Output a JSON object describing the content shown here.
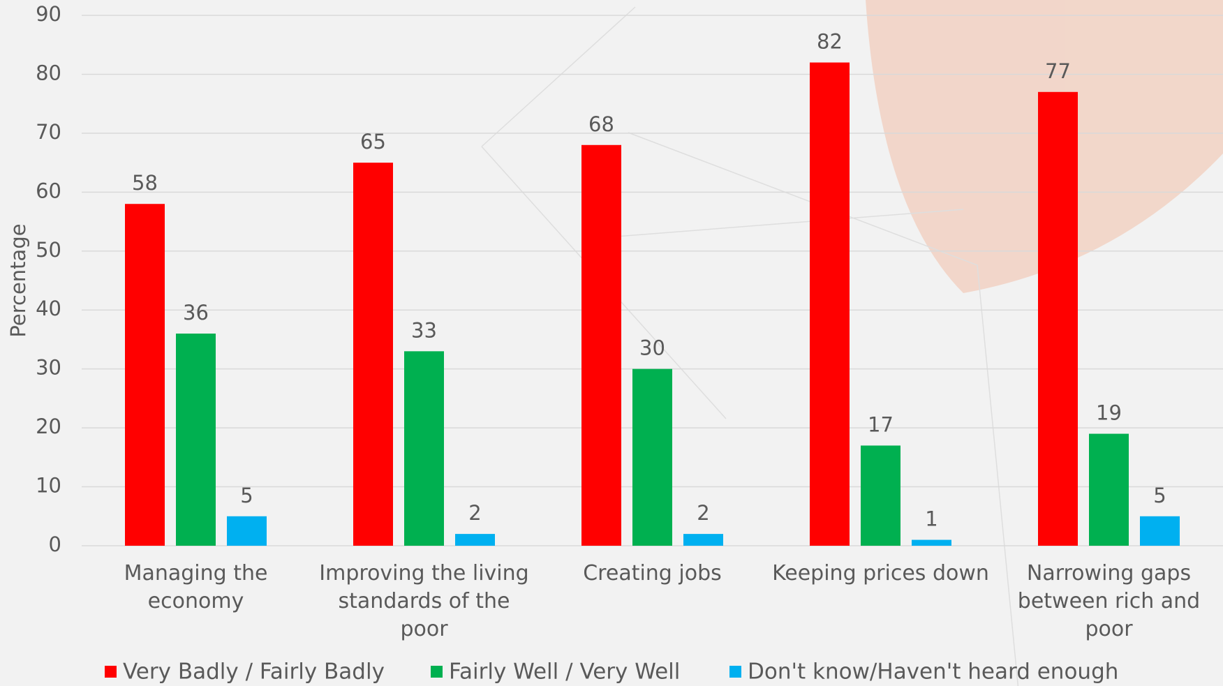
{
  "chart_data": {
    "type": "bar",
    "y_label": "Percentage",
    "categories": [
      "Managing the economy",
      "Improving the living standards of the poor",
      "Creating jobs",
      "Keeping prices down",
      "Narrowing gaps between rich and poor"
    ],
    "series": [
      {
        "name": "Very Badly / Fairly Badly",
        "color": "#ff0000",
        "values": [
          58,
          65,
          68,
          82,
          77
        ]
      },
      {
        "name": "Fairly Well / Very Well",
        "color": "#00b050",
        "values": [
          36,
          33,
          30,
          17,
          19
        ]
      },
      {
        "name": "Don't know/Haven't heard enough",
        "color": "#00b0f0",
        "values": [
          5,
          2,
          2,
          1,
          5
        ]
      }
    ],
    "ylim": [
      0,
      90
    ],
    "yticks": [
      0,
      10,
      20,
      30,
      40,
      50,
      60,
      70,
      80,
      90
    ],
    "grid": true,
    "legend": "bottom"
  }
}
